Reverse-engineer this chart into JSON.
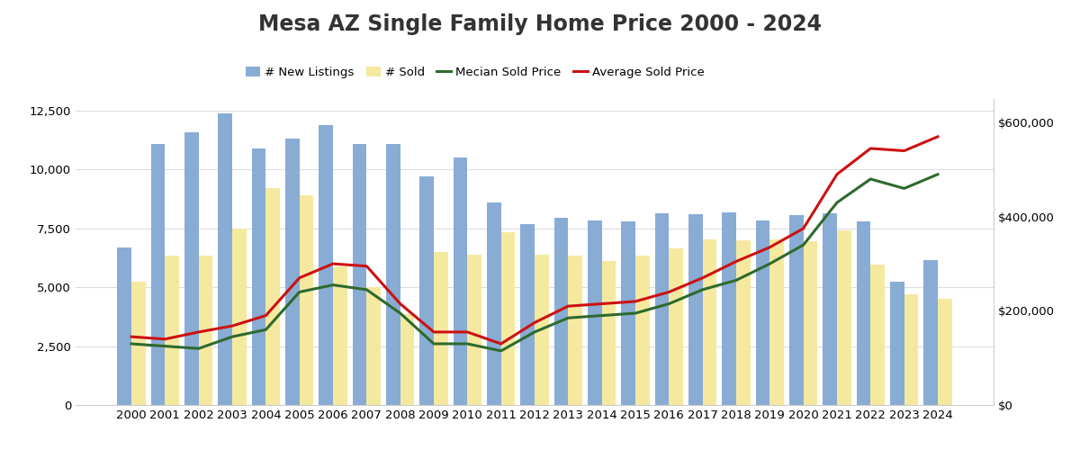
{
  "title": "Mesa AZ Single Family Home Price 2000 - 2024",
  "years": [
    2000,
    2001,
    2002,
    2003,
    2004,
    2005,
    2006,
    2007,
    2008,
    2009,
    2010,
    2011,
    2012,
    2013,
    2014,
    2015,
    2016,
    2017,
    2018,
    2019,
    2020,
    2021,
    2022,
    2023,
    2024
  ],
  "new_listings": [
    6700,
    11100,
    11600,
    12400,
    10900,
    11300,
    11900,
    11100,
    11100,
    9700,
    10500,
    8600,
    7700,
    7950,
    7850,
    7800,
    8150,
    8100,
    8200,
    7850,
    8050,
    8150,
    7800,
    5250,
    6150
  ],
  "sold": [
    5250,
    6350,
    6350,
    7500,
    9200,
    8900,
    5900,
    5000,
    3850,
    6500,
    6400,
    7350,
    6400,
    6350,
    6100,
    6350,
    6650,
    7050,
    7000,
    7050,
    6950,
    7400,
    5950,
    4700,
    4500
  ],
  "median_price": [
    130000,
    125000,
    120000,
    145000,
    160000,
    240000,
    255000,
    245000,
    195000,
    130000,
    130000,
    115000,
    155000,
    185000,
    190000,
    195000,
    215000,
    245000,
    265000,
    300000,
    340000,
    430000,
    480000,
    460000,
    490000
  ],
  "avg_price": [
    145000,
    140000,
    155000,
    168000,
    190000,
    270000,
    300000,
    295000,
    215000,
    155000,
    155000,
    130000,
    175000,
    210000,
    215000,
    220000,
    240000,
    270000,
    305000,
    335000,
    375000,
    490000,
    545000,
    540000,
    570000
  ],
  "bar_color_listings": "#89acd4",
  "bar_color_sold": "#f5e9a0",
  "line_color_median": "#2d6a2d",
  "line_color_avg": "#cc1111",
  "left_ylim": [
    0,
    13000
  ],
  "left_yticks": [
    0,
    2500,
    5000,
    7500,
    10000,
    12500
  ],
  "right_ylim": [
    0,
    650000
  ],
  "right_yticks": [
    0,
    200000,
    400000,
    600000
  ],
  "right_yticklabels": [
    "$0",
    "$200,000",
    "$400,000",
    "$600,000"
  ],
  "legend_labels": [
    "# New Listings",
    "# Sold",
    "Mecian Sold Price",
    "Average Sold Price"
  ],
  "background_color": "#ffffff",
  "title_fontsize": 17,
  "tick_fontsize": 9.5
}
